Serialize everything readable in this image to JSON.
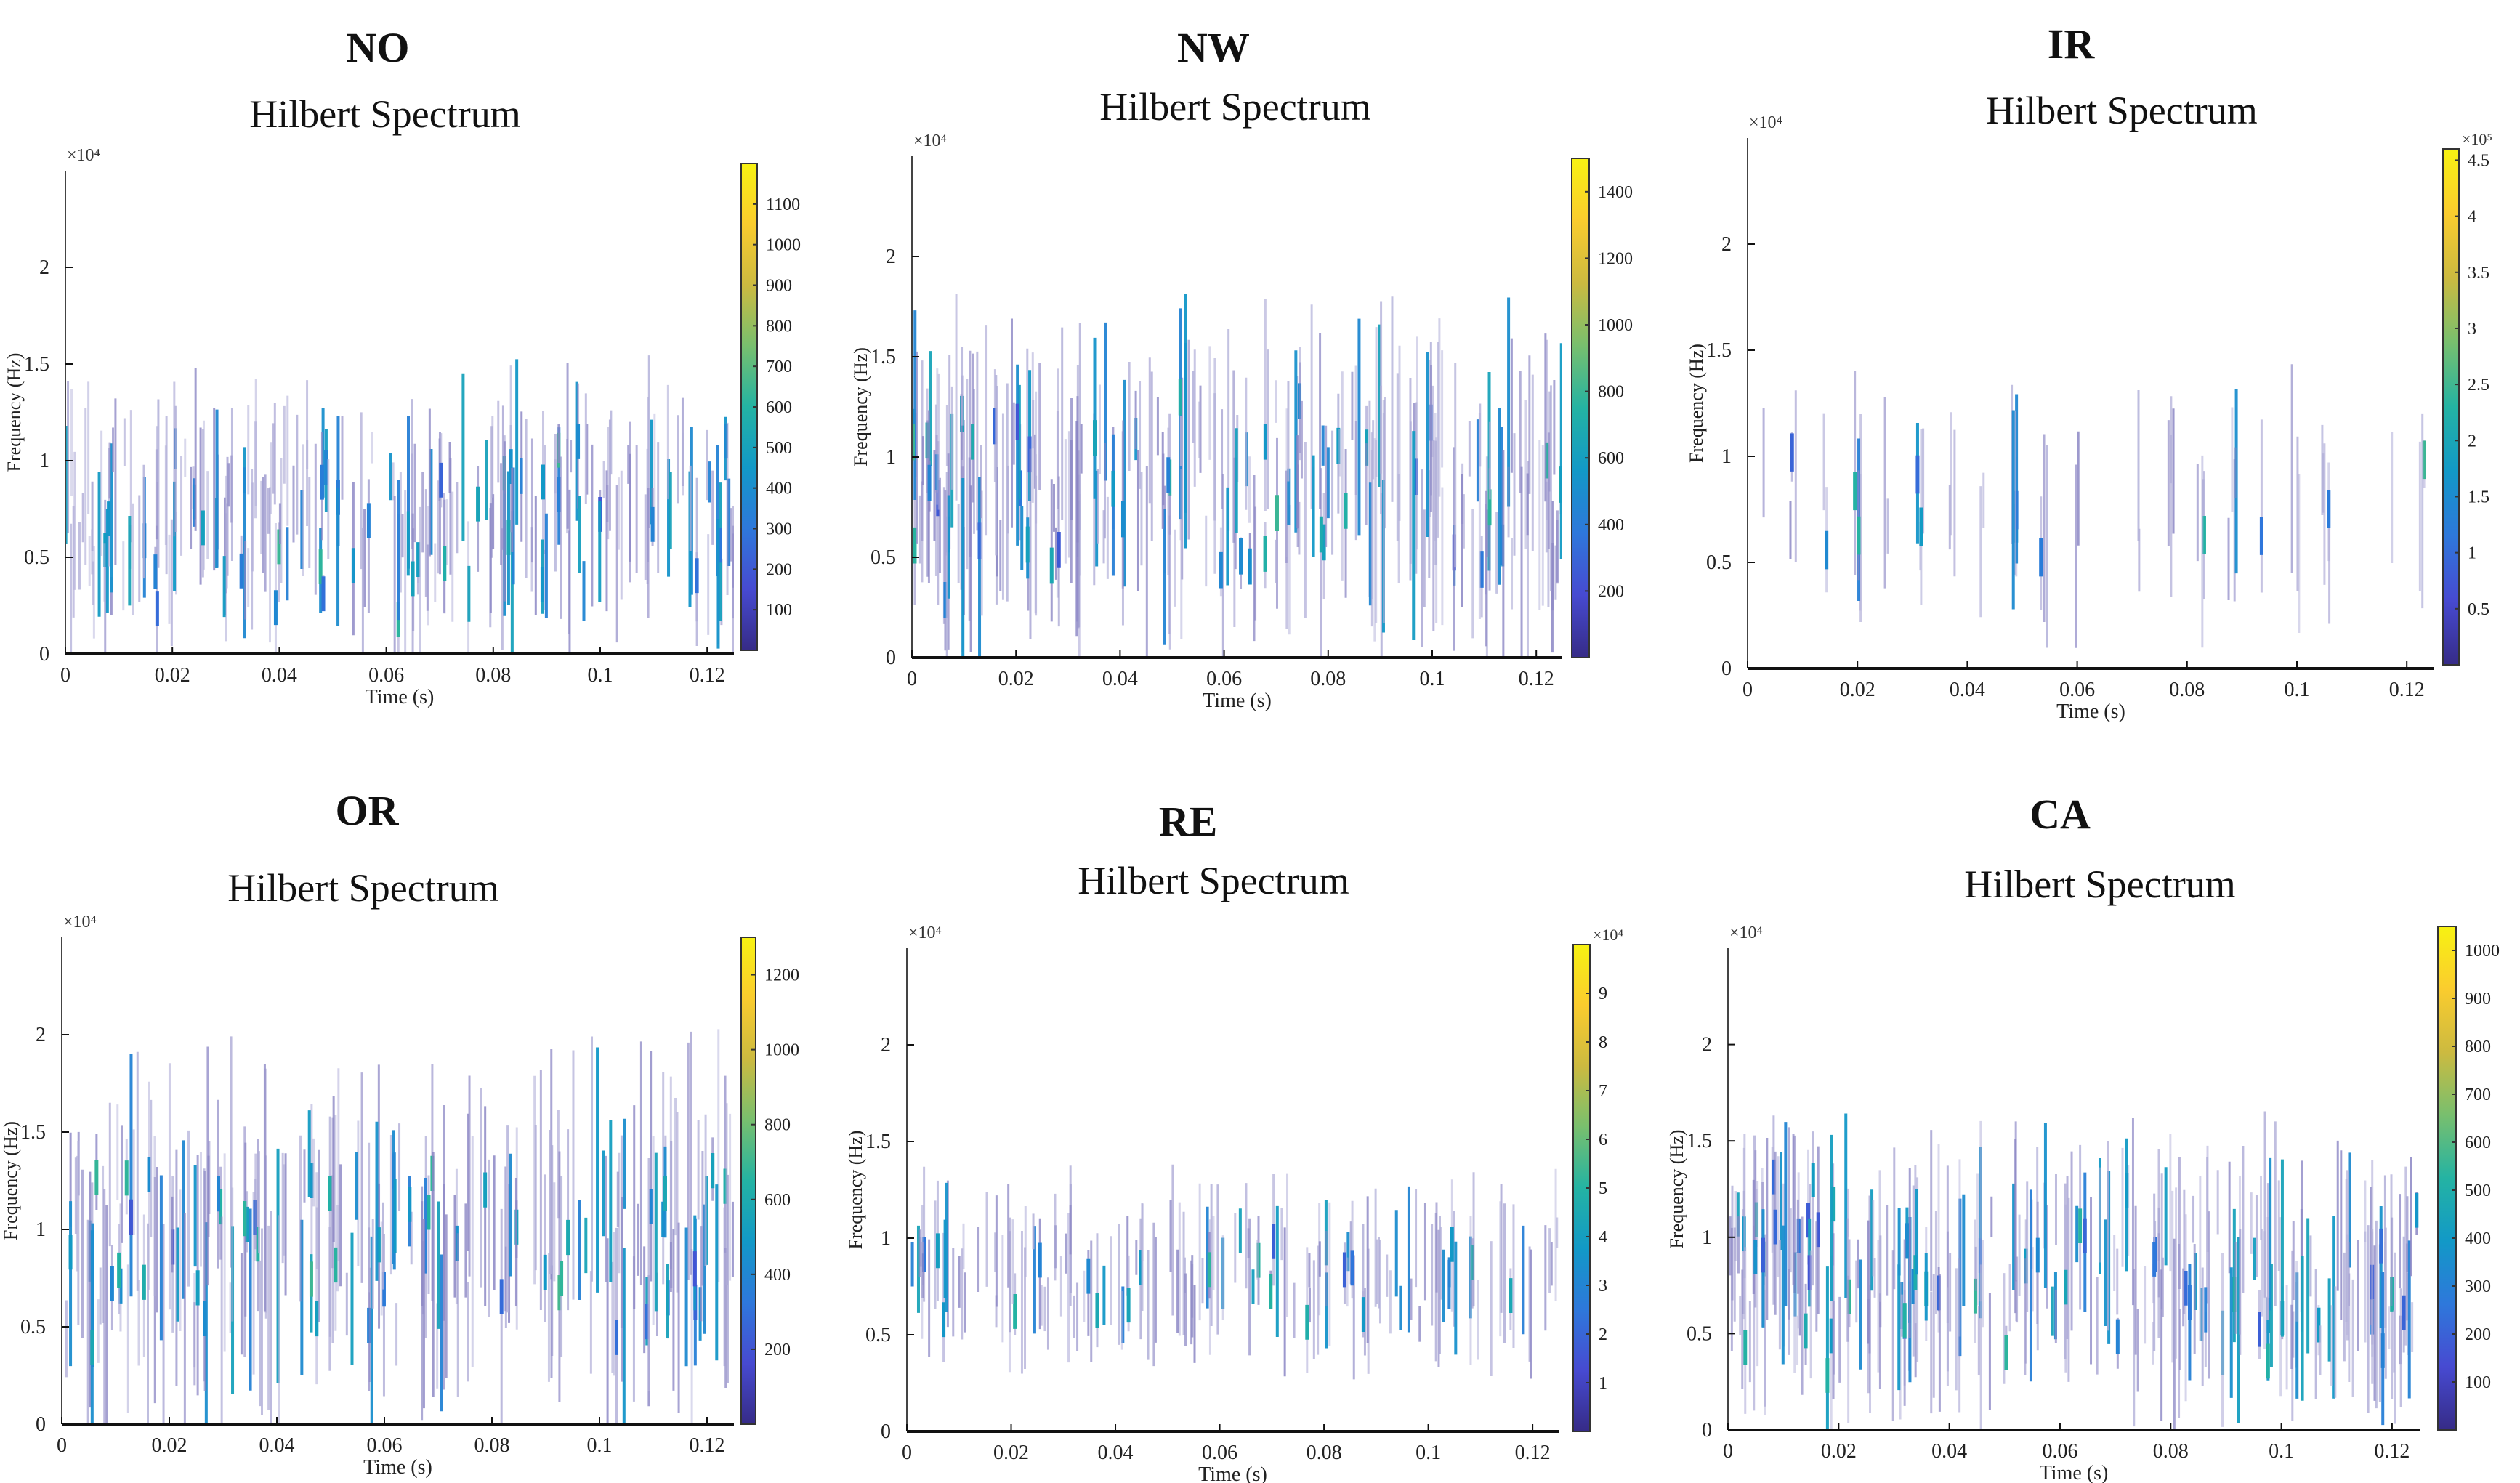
{
  "chart_data": [
    {
      "id": "no",
      "label": "NO",
      "title": "Hilbert Spectrum",
      "type": "heatmap",
      "xlabel": "Time (s)",
      "ylabel": "Frequency (Hz)",
      "xlim": [
        0,
        0.125
      ],
      "ylim": [
        0,
        25000
      ],
      "xticks": [
        0,
        0.02,
        0.04,
        0.06,
        0.08,
        0.1,
        0.12
      ],
      "xtick_labels": [
        "0",
        "0.02",
        "0.04",
        "0.06",
        "0.08",
        "0.1",
        "0.12"
      ],
      "yticks": [
        0,
        5000,
        10000,
        15000,
        20000
      ],
      "ytick_labels": [
        "0",
        "0.5",
        "1",
        "1.5",
        "2"
      ],
      "y_exponent": "×10⁴",
      "colorbar": {
        "min": 0,
        "max": 1200,
        "ticks": [
          100,
          200,
          300,
          400,
          500,
          600,
          700,
          800,
          900,
          1000,
          1100
        ],
        "tick_labels": [
          "100",
          "200",
          "300",
          "400",
          "500",
          "600",
          "700",
          "800",
          "900",
          "1000",
          "1100"
        ],
        "exponent": ""
      },
      "pattern": {
        "n_lines": 260,
        "center": 7000,
        "spread": 4000,
        "min_len": 1500,
        "max_len": 9000,
        "clusters": 0,
        "seed": 11
      }
    },
    {
      "id": "nw",
      "label": "NW",
      "title": "Hilbert Spectrum",
      "type": "heatmap",
      "xlabel": "Time (s)",
      "ylabel": "Frequency (Hz)",
      "xlim": [
        0,
        0.125
      ],
      "ylim": [
        0,
        25000
      ],
      "xticks": [
        0,
        0.02,
        0.04,
        0.06,
        0.08,
        0.1,
        0.12
      ],
      "xtick_labels": [
        "0",
        "0.02",
        "0.04",
        "0.06",
        "0.08",
        "0.1",
        "0.12"
      ],
      "yticks": [
        0,
        5000,
        10000,
        15000,
        20000
      ],
      "ytick_labels": [
        "0",
        "0.5",
        "1",
        "1.5",
        "2"
      ],
      "y_exponent": "×10⁴",
      "colorbar": {
        "min": 0,
        "max": 1500,
        "ticks": [
          200,
          400,
          600,
          800,
          1000,
          1200,
          1400
        ],
        "tick_labels": [
          "200",
          "400",
          "600",
          "800",
          "1000",
          "1200",
          "1400"
        ],
        "exponent": ""
      },
      "pattern": {
        "n_lines": 300,
        "center": 8500,
        "spread": 4500,
        "min_len": 2000,
        "max_len": 11000,
        "clusters": 0,
        "seed": 23
      }
    },
    {
      "id": "ir",
      "label": "IR",
      "title": "Hilbert Spectrum",
      "type": "heatmap",
      "xlabel": "Time (s)",
      "ylabel": "Frequency (Hz)",
      "xlim": [
        0,
        0.125
      ],
      "ylim": [
        0,
        25000
      ],
      "xticks": [
        0,
        0.02,
        0.04,
        0.06,
        0.08,
        0.1,
        0.12
      ],
      "xtick_labels": [
        "0",
        "0.02",
        "0.04",
        "0.06",
        "0.08",
        "0.1",
        "0.12"
      ],
      "yticks": [
        0,
        5000,
        10000,
        15000,
        20000
      ],
      "ytick_labels": [
        "0",
        "0.5",
        "1",
        "1.5",
        "2"
      ],
      "y_exponent": "×10⁴",
      "colorbar": {
        "min": 0,
        "max": 4.6,
        "ticks": [
          0.5,
          1,
          1.5,
          2,
          2.5,
          3,
          3.5,
          4,
          4.5
        ],
        "tick_labels": [
          "0.5",
          "1",
          "1.5",
          "2",
          "2.5",
          "3",
          "3.5",
          "4",
          "4.5"
        ],
        "exponent": "×10⁵"
      },
      "pattern": {
        "n_lines": 60,
        "center": 7500,
        "spread": 2500,
        "min_len": 2000,
        "max_len": 10000,
        "clusters": 1,
        "seed": 37
      }
    },
    {
      "id": "or",
      "label": "OR",
      "title": "Hilbert Spectrum",
      "type": "heatmap",
      "xlabel": "Time (s)",
      "ylabel": "Frequency (Hz)",
      "xlim": [
        0,
        0.125
      ],
      "ylim": [
        0,
        25000
      ],
      "xticks": [
        0,
        0.02,
        0.04,
        0.06,
        0.08,
        0.1,
        0.12
      ],
      "xtick_labels": [
        "0",
        "0.02",
        "0.04",
        "0.06",
        "0.08",
        "0.1",
        "0.12"
      ],
      "yticks": [
        0,
        5000,
        10000,
        15000,
        20000
      ],
      "ytick_labels": [
        "0",
        "0.5",
        "1",
        "1.5",
        "2"
      ],
      "y_exponent": "×10⁴",
      "colorbar": {
        "min": 0,
        "max": 1300,
        "ticks": [
          200,
          400,
          600,
          800,
          1000,
          1200
        ],
        "tick_labels": [
          "200",
          "400",
          "600",
          "800",
          "1000",
          "1200"
        ],
        "exponent": ""
      },
      "pattern": {
        "n_lines": 250,
        "center": 9000,
        "spread": 5000,
        "min_len": 2500,
        "max_len": 13000,
        "clusters": 0,
        "seed": 41
      }
    },
    {
      "id": "re",
      "label": "RE",
      "title": "Hilbert Spectrum",
      "type": "heatmap",
      "xlabel": "Time (s)",
      "ylabel": "Frequency (Hz)",
      "xlim": [
        0,
        0.125
      ],
      "ylim": [
        0,
        25000
      ],
      "xticks": [
        0,
        0.02,
        0.04,
        0.06,
        0.08,
        0.1,
        0.12
      ],
      "xtick_labels": [
        "0",
        "0.02",
        "0.04",
        "0.06",
        "0.08",
        "0.1",
        "0.12"
      ],
      "yticks": [
        0,
        5000,
        10000,
        15000,
        20000
      ],
      "ytick_labels": [
        "0",
        "0.5",
        "1",
        "1.5",
        "2"
      ],
      "y_exponent": "×10⁴",
      "colorbar": {
        "min": 0,
        "max": 10,
        "ticks": [
          1,
          2,
          3,
          4,
          5,
          6,
          7,
          8,
          9
        ],
        "tick_labels": [
          "1",
          "2",
          "3",
          "4",
          "5",
          "6",
          "7",
          "8",
          "9"
        ],
        "exponent": "×10⁴"
      },
      "pattern": {
        "n_lines": 170,
        "center": 8000,
        "spread": 2500,
        "min_len": 1500,
        "max_len": 8000,
        "clusters": 0,
        "seed": 53
      }
    },
    {
      "id": "ca",
      "label": "CA",
      "title": "Hilbert Spectrum",
      "type": "heatmap",
      "xlabel": "Time (s)",
      "ylabel": "Frequency (Hz)",
      "xlim": [
        0,
        0.125
      ],
      "ylim": [
        0,
        25000
      ],
      "xticks": [
        0,
        0.02,
        0.04,
        0.06,
        0.08,
        0.1,
        0.12
      ],
      "xtick_labels": [
        "0",
        "0.02",
        "0.04",
        "0.06",
        "0.08",
        "0.1",
        "0.12"
      ],
      "yticks": [
        0,
        5000,
        10000,
        15000,
        20000
      ],
      "ytick_labels": [
        "0",
        "0.5",
        "1",
        "1.5",
        "2"
      ],
      "y_exponent": "×10⁴",
      "colorbar": {
        "min": 0,
        "max": 1050,
        "ticks": [
          100,
          200,
          300,
          400,
          500,
          600,
          700,
          800,
          900,
          1000
        ],
        "tick_labels": [
          "100",
          "200",
          "300",
          "400",
          "500",
          "600",
          "700",
          "800",
          "900",
          "1000"
        ],
        "exponent": ""
      },
      "pattern": {
        "n_lines": 310,
        "center": 8000,
        "spread": 4000,
        "min_len": 2000,
        "max_len": 10000,
        "clusters": 0,
        "seed": 67
      }
    }
  ]
}
